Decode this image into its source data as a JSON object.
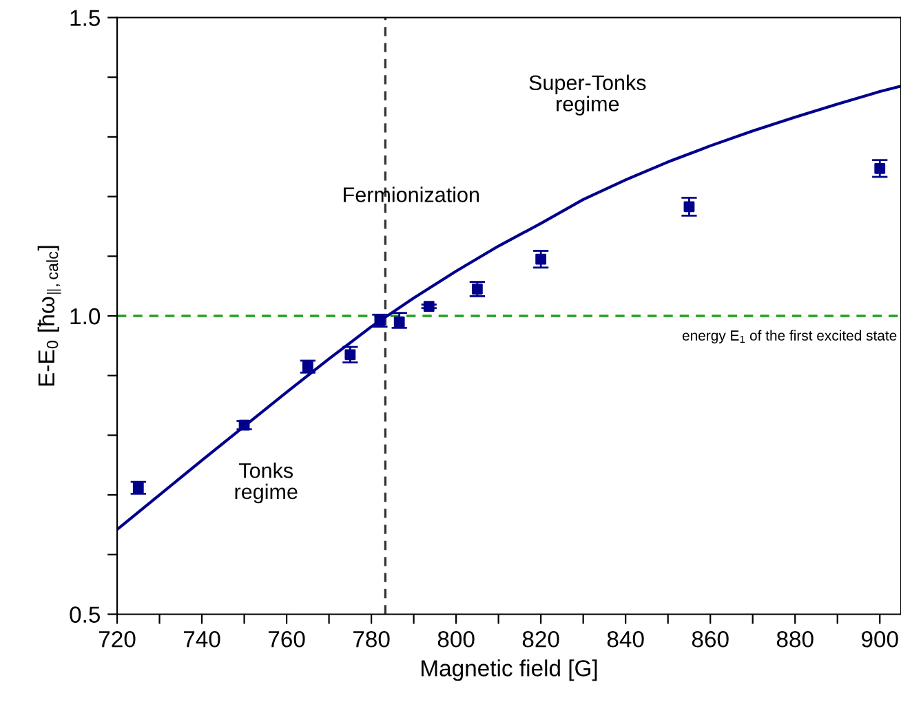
{
  "chart_data": {
    "type": "scatter",
    "xlabel": "Magnetic field [G]",
    "ylabel": "E-E$_{0}$ [ħω$_{∥,calc}$]",
    "xlim": [
      720,
      905
    ],
    "ylim": [
      0.5,
      1.5
    ],
    "xticks": [
      720,
      {
        "value": 730,
        "label": null
      },
      740,
      {
        "value": 750,
        "label": null
      },
      760,
      {
        "value": 770,
        "label": null
      },
      780,
      {
        "value": 790,
        "label": null
      },
      800,
      {
        "value": 810,
        "label": null
      },
      820,
      {
        "value": 830,
        "label": null
      },
      840,
      {
        "value": 850,
        "label": null
      },
      860,
      {
        "value": 870,
        "label": null
      },
      880,
      {
        "value": 890,
        "label": null
      },
      900
    ],
    "yticks": [
      {
        "value": 0.5,
        "label": "0.5"
      },
      {
        "value": 0.6,
        "label": null
      },
      {
        "value": 0.7,
        "label": null
      },
      {
        "value": 0.8,
        "label": null
      },
      {
        "value": 0.9,
        "label": null
      },
      {
        "value": 1.0,
        "label": "1.0"
      },
      {
        "value": 1.1,
        "label": null
      },
      {
        "value": 1.2,
        "label": null
      },
      {
        "value": 1.3,
        "label": null
      },
      {
        "value": 1.4,
        "label": null
      },
      {
        "value": 1.5,
        "label": "1.5"
      }
    ],
    "grid": false,
    "legend": false,
    "marker": "square",
    "series": [
      {
        "color": "#00008b",
        "x": [
          725,
          750,
          765,
          775,
          782,
          786.6,
          793.6,
          805,
          820,
          855,
          900
        ],
        "values": [
          0.712,
          0.817,
          0.915,
          0.935,
          0.992,
          0.99,
          1.016,
          1.045,
          1.095,
          1.183,
          1.247
        ],
        "errors": [
          0.01,
          0.007,
          0.01,
          0.013,
          0.01,
          [
            0.98,
            1.005
          ],
          0.003,
          0.012,
          0.014,
          0.015,
          0.014
        ]
      },
      {
        "type": "line",
        "color": "#00008b",
        "line_style": "solid",
        "marker": "none",
        "x": [
          720,
          730,
          740,
          750,
          760,
          770,
          780,
          790,
          800,
          810,
          820,
          830,
          840,
          850,
          860,
          870,
          880,
          890,
          900,
          905
        ],
        "values": [
          0.642,
          0.7,
          0.758,
          0.815,
          0.872,
          0.928,
          0.982,
          1.03,
          1.075,
          1.117,
          1.155,
          1.195,
          1.228,
          1.258,
          1.285,
          1.31,
          1.333,
          1.355,
          1.376,
          1.385
        ]
      }
    ],
    "ref_lines": [
      {
        "axis": "x",
        "value": 783.3,
        "label": "Fermionization",
        "color": "#333333",
        "line_style": "dashed"
      },
      {
        "axis": "y",
        "value": 1.0,
        "label": "energy E$_{1}$ of the first excited state",
        "color": "#22a022",
        "line_style": "dashed"
      }
    ],
    "annotations": [
      "Super-Tonks\nregime",
      "Tonks\nregime"
    ]
  }
}
